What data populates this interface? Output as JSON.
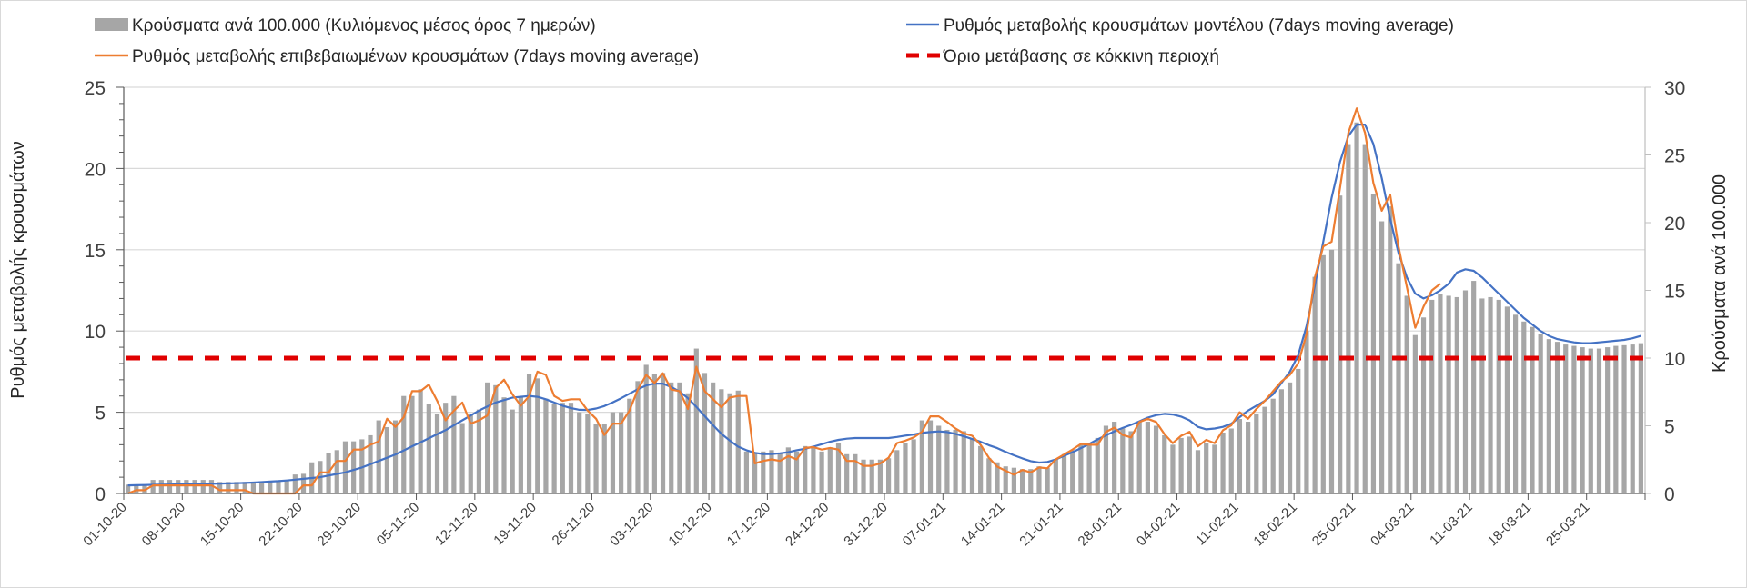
{
  "chart_data": {
    "type": "bar+line",
    "title": "",
    "legend": {
      "placement": "top",
      "items": [
        {
          "key": "bars",
          "label": "Κρούσματα ανά 100.000 (Κυλιόμενος μέσος όρος 7 ημερών)",
          "color": "#a6a6a6",
          "symbol": "box"
        },
        {
          "key": "model",
          "label": "Ρυθμός μεταβολής κρουσμάτων μοντέλου (7days moving average)",
          "color": "#4472c4",
          "symbol": "line"
        },
        {
          "key": "confirmed",
          "label": "Ρυθμός μεταβολής επιβεβαιωμένων κρουσμάτων (7days moving average)",
          "color": "#ed7d31",
          "symbol": "line"
        },
        {
          "key": "threshold",
          "label": "Όριο μετάβασης σε κόκκινη περιοχή",
          "color": "#e00000",
          "symbol": "dash"
        }
      ]
    },
    "ylabel_left": "Ρυθμός μεταβολής κρουσμάτων",
    "ylabel_right": "Κρούσματα ανά 100.000",
    "ylim_left": [
      0,
      25
    ],
    "ylim_right": [
      0,
      30
    ],
    "yticks_left": [
      "0",
      "5",
      "10",
      "15",
      "20",
      "25"
    ],
    "yticks_right": [
      "0",
      "5",
      "10",
      "15",
      "20",
      "25",
      "30"
    ],
    "grid": true,
    "start_date": "01-10-20",
    "num_days": 182,
    "xtick_every_days": 7,
    "xticks": [
      "01-10-20",
      "08-10-20",
      "15-10-20",
      "22-10-20",
      "29-10-20",
      "05-11-20",
      "12-11-20",
      "19-11-20",
      "26-11-20",
      "03-12-20",
      "10-12-20",
      "17-12-20",
      "24-12-20",
      "31-12-20",
      "07-01-21",
      "14-01-21",
      "21-01-21",
      "28-01-21",
      "04-02-21",
      "11-02-21",
      "18-02-21",
      "25-02-21",
      "04-03-21",
      "11-03-21",
      "18-03-21",
      "25-03-21"
    ],
    "series": [
      {
        "name": "Κρούσματα ανά 100.000 (Κυλιόμενος μέσος όρος 7 ημερών)",
        "type": "bar",
        "axis": "right",
        "color": "#a6a6a6",
        "values": [
          0.65,
          0.65,
          0.65,
          1.0,
          1.0,
          1.0,
          1.0,
          1.0,
          1.0,
          1.0,
          1.0,
          0.85,
          0.85,
          0.85,
          0.85,
          0.8,
          0.85,
          0.9,
          0.95,
          1.0,
          1.4,
          1.45,
          2.3,
          2.4,
          3.0,
          3.2,
          3.85,
          3.85,
          4.0,
          4.3,
          5.4,
          4.9,
          5.4,
          7.2,
          7.2,
          7.7,
          6.6,
          5.9,
          6.7,
          7.2,
          5.2,
          5.9,
          6.2,
          8.2,
          8.0,
          7.1,
          6.2,
          7.1,
          8.8,
          8.5,
          7.0,
          6.6,
          6.7,
          6.7,
          6.0,
          5.9,
          5.1,
          5.1,
          6.0,
          6.0,
          7.0,
          8.3,
          9.5,
          8.8,
          8.9,
          8.2,
          8.2,
          7.4,
          10.7,
          8.9,
          8.2,
          7.7,
          7.4,
          7.6,
          3.1,
          3.0,
          3.1,
          3.2,
          3.0,
          3.4,
          3.1,
          3.5,
          3.5,
          3.1,
          3.4,
          3.7,
          2.9,
          2.9,
          2.5,
          2.5,
          2.5,
          2.6,
          3.2,
          3.7,
          4.0,
          5.4,
          5.4,
          5.0,
          4.7,
          4.7,
          4.6,
          4.1,
          3.5,
          2.6,
          2.3,
          2.0,
          1.9,
          1.8,
          1.8,
          2.0,
          1.9,
          2.5,
          2.9,
          3.2,
          3.6,
          3.7,
          4.1,
          5.0,
          5.3,
          4.8,
          4.6,
          5.3,
          5.3,
          5.0,
          4.3,
          3.6,
          4.1,
          4.2,
          3.2,
          3.7,
          3.6,
          4.5,
          4.8,
          5.5,
          5.3,
          5.9,
          6.4,
          7.0,
          7.7,
          8.2,
          9.2,
          12.0,
          16.0,
          17.6,
          18.0,
          22.0,
          25.8,
          27.4,
          25.8,
          22.1,
          20.1,
          21.2,
          17.0,
          14.6,
          11.7,
          13.0,
          14.3,
          14.7,
          14.6,
          14.5,
          15.0,
          15.7,
          14.4,
          14.5,
          14.3,
          13.8,
          13.2,
          12.7,
          12.3,
          11.8,
          11.4,
          11.2,
          11.0,
          10.9,
          10.8,
          10.7,
          10.7,
          10.8,
          10.9,
          10.95,
          11.0,
          11.1
        ]
      },
      {
        "name": "Ρυθμός μεταβολής κρουσμάτων μοντέλου (7days moving average)",
        "type": "line",
        "axis": "left",
        "color": "#4472c4",
        "values": [
          0.5,
          0.51,
          0.52,
          0.53,
          0.54,
          0.55,
          0.56,
          0.57,
          0.58,
          0.59,
          0.6,
          0.61,
          0.62,
          0.63,
          0.65,
          0.67,
          0.7,
          0.73,
          0.76,
          0.8,
          0.85,
          0.9,
          0.95,
          1.0,
          1.1,
          1.2,
          1.3,
          1.45,
          1.6,
          1.8,
          2.0,
          2.2,
          2.4,
          2.65,
          2.9,
          3.15,
          3.4,
          3.65,
          3.9,
          4.2,
          4.5,
          4.8,
          5.1,
          5.35,
          5.6,
          5.75,
          5.9,
          5.95,
          6.0,
          5.95,
          5.8,
          5.6,
          5.4,
          5.25,
          5.15,
          5.14,
          5.23,
          5.38,
          5.61,
          5.86,
          6.14,
          6.42,
          6.65,
          6.76,
          6.76,
          6.55,
          6.27,
          5.86,
          5.33,
          4.76,
          4.2,
          3.67,
          3.26,
          2.88,
          2.66,
          2.5,
          2.43,
          2.43,
          2.47,
          2.54,
          2.66,
          2.75,
          2.88,
          3.03,
          3.18,
          3.3,
          3.37,
          3.41,
          3.41,
          3.41,
          3.41,
          3.41,
          3.48,
          3.56,
          3.63,
          3.73,
          3.78,
          3.82,
          3.78,
          3.67,
          3.52,
          3.35,
          3.18,
          2.97,
          2.79,
          2.56,
          2.35,
          2.16,
          1.99,
          1.9,
          1.94,
          2.09,
          2.32,
          2.54,
          2.79,
          3.05,
          3.33,
          3.58,
          3.82,
          4.03,
          4.22,
          4.44,
          4.67,
          4.82,
          4.9,
          4.86,
          4.73,
          4.5,
          4.1,
          3.95,
          4.0,
          4.1,
          4.3,
          4.7,
          5.1,
          5.4,
          5.7,
          6.1,
          6.8,
          7.5,
          8.5,
          10.3,
          12.8,
          15.5,
          18.2,
          20.4,
          22.0,
          22.7,
          22.7,
          21.5,
          19.4,
          16.9,
          14.8,
          13.3,
          12.3,
          12.0,
          12.2,
          12.5,
          12.9,
          13.6,
          13.8,
          13.7,
          13.3,
          12.8,
          12.3,
          11.8,
          11.3,
          10.8,
          10.4,
          10.0,
          9.7,
          9.5,
          9.4,
          9.3,
          9.25,
          9.25,
          9.3,
          9.35,
          9.4,
          9.45,
          9.55,
          9.7
        ]
      },
      {
        "name": "Ρυθμός μεταβολής επιβεβαιωμένων κρουσμάτων (7days moving average)",
        "type": "line",
        "axis": "left",
        "color": "#ed7d31",
        "values": [
          0,
          0.2,
          0.2,
          0.5,
          0.5,
          0.5,
          0.5,
          0.5,
          0.5,
          0.5,
          0.5,
          0.2,
          0.2,
          0.2,
          0.2,
          0,
          0,
          0,
          0,
          0,
          0,
          0.5,
          0.5,
          1.3,
          1.3,
          2.0,
          2.0,
          2.7,
          2.7,
          3.0,
          3.2,
          4.6,
          4.1,
          4.7,
          6.3,
          6.3,
          6.7,
          5.7,
          4.5,
          5.1,
          5.6,
          4.3,
          4.5,
          4.8,
          6.5,
          7.0,
          6.1,
          5.4,
          6.0,
          7.5,
          7.3,
          6.0,
          5.7,
          5.8,
          5.8,
          5.1,
          4.6,
          3.6,
          4.3,
          4.3,
          5.1,
          6.4,
          7.3,
          6.8,
          7.4,
          6.4,
          6.3,
          5.2,
          7.8,
          6.3,
          5.8,
          5.3,
          5.9,
          6.0,
          6.0,
          1.85,
          2.0,
          2.1,
          2.0,
          2.3,
          2.1,
          2.8,
          2.85,
          2.7,
          2.8,
          2.7,
          2.0,
          2.0,
          1.7,
          1.7,
          1.85,
          2.2,
          3.1,
          3.25,
          3.45,
          3.8,
          4.75,
          4.75,
          4.4,
          4.0,
          3.7,
          3.55,
          3.0,
          2.2,
          1.65,
          1.4,
          1.15,
          1.45,
          1.3,
          1.6,
          1.55,
          2.1,
          2.4,
          2.7,
          3.05,
          3.0,
          3.0,
          3.8,
          4.05,
          3.6,
          3.45,
          4.4,
          4.6,
          4.4,
          3.65,
          3.1,
          3.55,
          3.8,
          2.9,
          3.3,
          3.1,
          3.9,
          4.2,
          5.0,
          4.6,
          5.2,
          5.7,
          6.3,
          6.9,
          7.3,
          8.0,
          9.8,
          13.3,
          15.2,
          15.5,
          18.8,
          22.2,
          23.7,
          22.2,
          19.1,
          17.4,
          18.4,
          15.2,
          12.7,
          10.2,
          11.5,
          12.5,
          12.9
        ]
      },
      {
        "name": "Όριο μετάβασης σε κόκκινη περιοχή",
        "type": "hline",
        "axis": "right",
        "color": "#e00000",
        "value": 10
      }
    ]
  }
}
